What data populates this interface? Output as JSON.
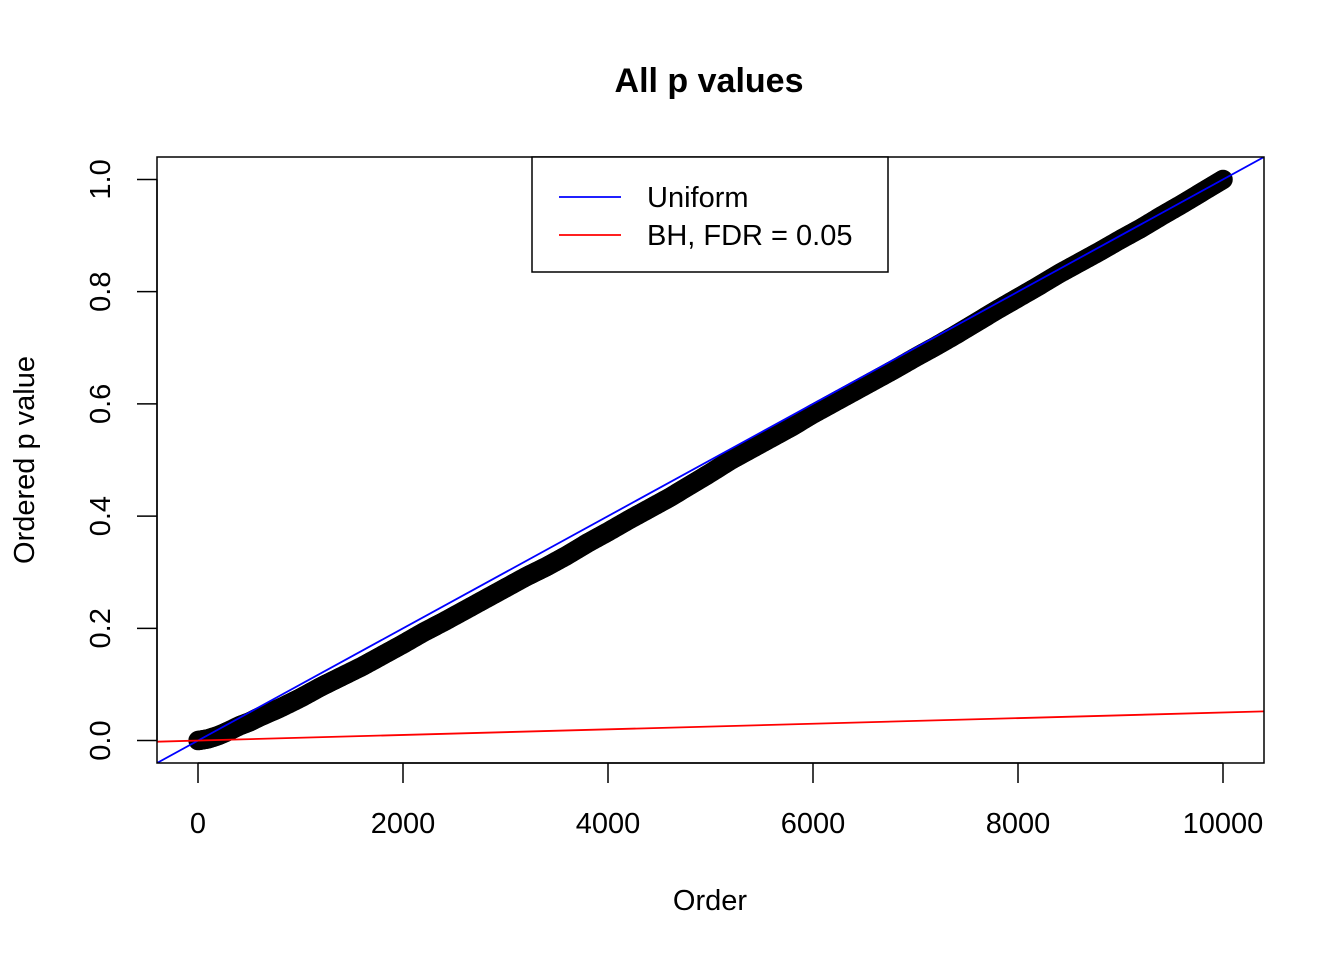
{
  "chart_data": {
    "type": "scatter",
    "title": "All p values",
    "xlabel": "Order",
    "ylabel": "Ordered p value",
    "xlim": [
      -400,
      10400
    ],
    "ylim": [
      -0.04,
      1.04
    ],
    "x_ticks": [
      0,
      2000,
      4000,
      6000,
      8000,
      10000
    ],
    "x_tick_labels": [
      "0",
      "2000",
      "4000",
      "6000",
      "8000",
      "10000"
    ],
    "y_ticks": [
      0.0,
      0.2,
      0.4,
      0.6,
      0.8,
      1.0
    ],
    "y_tick_labels": [
      "0.0",
      "0.2",
      "0.4",
      "0.6",
      "0.8",
      "1.0"
    ],
    "grid": false,
    "legend_position": "top-center",
    "series": [
      {
        "kind": "points",
        "color": "#000000",
        "x": [
          1,
          100,
          200,
          300,
          400,
          500,
          600,
          800,
          1000,
          1200,
          1400,
          1600,
          1800,
          2000,
          2200,
          2400,
          2600,
          2800,
          3000,
          3200,
          3400,
          3600,
          3800,
          4000,
          4200,
          4400,
          4600,
          4800,
          5000,
          5200,
          5400,
          5600,
          5800,
          6000,
          6200,
          6400,
          6600,
          6800,
          7000,
          7200,
          7400,
          7600,
          7800,
          8000,
          8200,
          8400,
          8600,
          8800,
          9000,
          9200,
          9400,
          9600,
          9800,
          10000
        ],
        "y": [
          0.0,
          0.003,
          0.009,
          0.017,
          0.026,
          0.033,
          0.042,
          0.058,
          0.076,
          0.096,
          0.114,
          0.132,
          0.152,
          0.172,
          0.193,
          0.212,
          0.232,
          0.252,
          0.272,
          0.292,
          0.31,
          0.33,
          0.352,
          0.372,
          0.393,
          0.413,
          0.433,
          0.455,
          0.477,
          0.5,
          0.52,
          0.54,
          0.56,
          0.582,
          0.602,
          0.622,
          0.642,
          0.662,
          0.683,
          0.703,
          0.724,
          0.746,
          0.768,
          0.789,
          0.81,
          0.832,
          0.852,
          0.872,
          0.893,
          0.913,
          0.935,
          0.956,
          0.978,
          1.0
        ]
      },
      {
        "kind": "line",
        "name": "Uniform",
        "color": "#0000ff",
        "intercept": 0,
        "slope": 0.0001
      },
      {
        "kind": "line",
        "name": "BH, FDR = 0.05",
        "color": "#ff0000",
        "intercept": 0,
        "slope": 5e-06
      }
    ]
  }
}
